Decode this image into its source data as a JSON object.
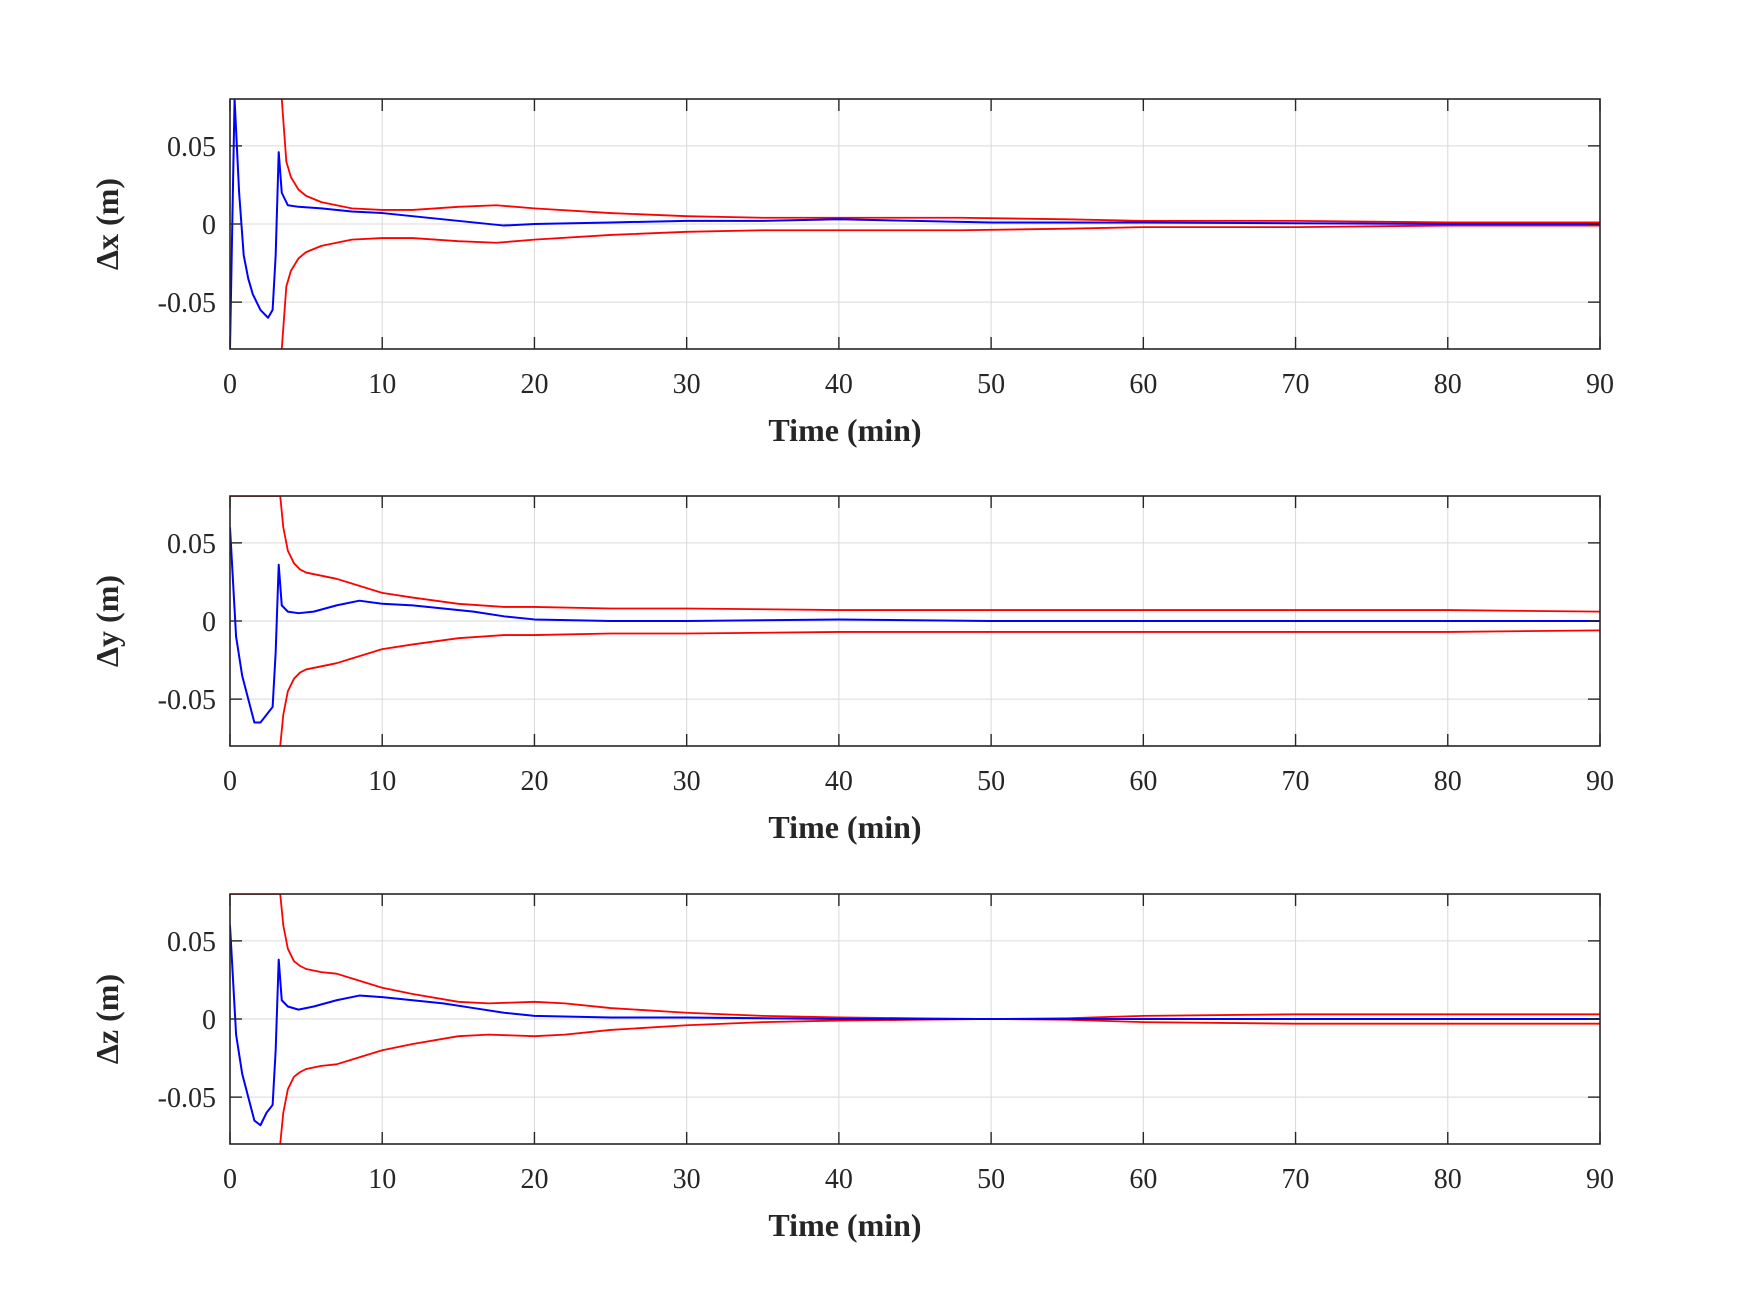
{
  "chart_data": [
    {
      "type": "line",
      "id": "dx",
      "title": "",
      "xlabel": "Time (min)",
      "ylabel": "Δx (m)",
      "xlim": [
        0,
        90
      ],
      "ylim": [
        -0.08,
        0.08
      ],
      "xticks": [
        0,
        10,
        20,
        30,
        40,
        50,
        60,
        70,
        80,
        90
      ],
      "yticks": [
        -0.05,
        0,
        0.05
      ],
      "ytick_labels": [
        "-0.05",
        "0",
        "0.05"
      ],
      "xtick_labels": [
        "0",
        "10",
        "20",
        "30",
        "40",
        "50",
        "60",
        "70",
        "80",
        "90"
      ],
      "grid": true,
      "colors": {
        "error": "#0000ff",
        "bound": "#ff0000"
      },
      "series": [
        {
          "role": "error",
          "color": "#0000ff",
          "x": [
            0,
            0.3,
            0.6,
            0.9,
            1.2,
            1.5,
            2.0,
            2.5,
            2.8,
            3.0,
            3.2,
            3.4,
            3.8,
            4.5,
            6,
            8,
            10,
            12,
            14,
            16,
            18,
            20,
            25,
            30,
            35,
            40,
            45,
            50,
            55,
            60,
            70,
            80,
            90
          ],
          "y": [
            -0.08,
            0.08,
            0.02,
            -0.02,
            -0.035,
            -0.045,
            -0.055,
            -0.06,
            -0.055,
            -0.02,
            0.046,
            0.02,
            0.012,
            0.011,
            0.01,
            0.008,
            0.007,
            0.005,
            0.003,
            0.001,
            -0.001,
            0.0,
            0.001,
            0.002,
            0.002,
            0.003,
            0.002,
            0.001,
            0.001,
            0.001,
            0.0005,
            0.0,
            0.0
          ]
        },
        {
          "role": "upper-bound",
          "color": "#ff0000",
          "x": [
            3.4,
            3.7,
            4.0,
            4.5,
            5,
            6,
            7,
            8,
            10,
            12,
            15,
            17.5,
            20,
            25,
            30,
            35,
            40,
            45,
            48,
            55,
            60,
            70,
            80,
            90
          ],
          "y": [
            0.08,
            0.04,
            0.03,
            0.022,
            0.018,
            0.014,
            0.012,
            0.01,
            0.009,
            0.009,
            0.011,
            0.012,
            0.01,
            0.007,
            0.005,
            0.004,
            0.004,
            0.004,
            0.004,
            0.003,
            0.002,
            0.002,
            0.001,
            0.001
          ]
        },
        {
          "role": "lower-bound",
          "color": "#ff0000",
          "x": [
            3.4,
            3.7,
            4.0,
            4.5,
            5,
            6,
            7,
            8,
            10,
            12,
            15,
            17.5,
            20,
            25,
            30,
            35,
            40,
            45,
            48,
            55,
            60,
            70,
            80,
            90
          ],
          "y": [
            -0.08,
            -0.04,
            -0.03,
            -0.022,
            -0.018,
            -0.014,
            -0.012,
            -0.01,
            -0.009,
            -0.009,
            -0.011,
            -0.012,
            -0.01,
            -0.007,
            -0.005,
            -0.004,
            -0.004,
            -0.004,
            -0.004,
            -0.003,
            -0.002,
            -0.002,
            -0.001,
            -0.001
          ]
        }
      ]
    },
    {
      "type": "line",
      "id": "dy",
      "title": "",
      "xlabel": "Time (min)",
      "ylabel": "Δy (m)",
      "xlim": [
        0,
        90
      ],
      "ylim": [
        -0.08,
        0.08
      ],
      "xticks": [
        0,
        10,
        20,
        30,
        40,
        50,
        60,
        70,
        80,
        90
      ],
      "yticks": [
        -0.05,
        0,
        0.05
      ],
      "ytick_labels": [
        "-0.05",
        "0",
        "0.05"
      ],
      "xtick_labels": [
        "0",
        "10",
        "20",
        "30",
        "40",
        "50",
        "60",
        "70",
        "80",
        "90"
      ],
      "grid": true,
      "colors": {
        "error": "#0000ff",
        "bound": "#ff0000"
      },
      "series": [
        {
          "role": "error",
          "color": "#0000ff",
          "x": [
            0,
            0.4,
            0.8,
            1.2,
            1.6,
            2.0,
            2.4,
            2.8,
            3.0,
            3.2,
            3.4,
            3.8,
            4.5,
            5.5,
            7,
            8.5,
            10,
            12,
            14,
            16,
            18,
            20,
            25,
            30,
            40,
            50,
            60,
            70,
            80,
            90
          ],
          "y": [
            0.06,
            -0.01,
            -0.035,
            -0.05,
            -0.065,
            -0.065,
            -0.06,
            -0.055,
            -0.02,
            0.036,
            0.01,
            0.006,
            0.005,
            0.006,
            0.01,
            0.013,
            0.011,
            0.01,
            0.008,
            0.006,
            0.003,
            0.001,
            0.0,
            0.0,
            0.001,
            0.0,
            0.0,
            0.0,
            0.0,
            0.0
          ]
        },
        {
          "role": "upper-bound",
          "color": "#ff0000",
          "x": [
            -0.05,
            0.1,
            0.3,
            0.5,
            3.3,
            3.5,
            3.8,
            4.2,
            4.6,
            5,
            6,
            7,
            8,
            10,
            12,
            15,
            18,
            20,
            25,
            30,
            40,
            50,
            60,
            70,
            80,
            90
          ],
          "y": [
            0.08,
            0.08,
            0.08,
            0.08,
            0.08,
            0.06,
            0.045,
            0.037,
            0.033,
            0.031,
            0.029,
            0.027,
            0.024,
            0.018,
            0.015,
            0.011,
            0.009,
            0.009,
            0.008,
            0.008,
            0.007,
            0.007,
            0.007,
            0.007,
            0.007,
            0.006
          ]
        },
        {
          "role": "lower-bound",
          "color": "#ff0000",
          "x": [
            3.3,
            3.5,
            3.8,
            4.2,
            4.6,
            5,
            6,
            7,
            8,
            10,
            12,
            15,
            18,
            20,
            25,
            30,
            40,
            50,
            60,
            70,
            80,
            90
          ],
          "y": [
            -0.08,
            -0.06,
            -0.045,
            -0.037,
            -0.033,
            -0.031,
            -0.029,
            -0.027,
            -0.024,
            -0.018,
            -0.015,
            -0.011,
            -0.009,
            -0.009,
            -0.008,
            -0.008,
            -0.007,
            -0.007,
            -0.007,
            -0.007,
            -0.007,
            -0.006
          ]
        }
      ]
    },
    {
      "type": "line",
      "id": "dz",
      "title": "",
      "xlabel": "Time (min)",
      "ylabel": "Δz (m)",
      "xlim": [
        0,
        90
      ],
      "ylim": [
        -0.08,
        0.08
      ],
      "xticks": [
        0,
        10,
        20,
        30,
        40,
        50,
        60,
        70,
        80,
        90
      ],
      "yticks": [
        -0.05,
        0,
        0.05
      ],
      "ytick_labels": [
        "-0.05",
        "0",
        "0.05"
      ],
      "xtick_labels": [
        "0",
        "10",
        "20",
        "30",
        "40",
        "50",
        "60",
        "70",
        "80",
        "90"
      ],
      "grid": true,
      "colors": {
        "error": "#0000ff",
        "bound": "#ff0000"
      },
      "series": [
        {
          "role": "error",
          "color": "#0000ff",
          "x": [
            0,
            0.4,
            0.8,
            1.2,
            1.6,
            2.0,
            2.4,
            2.8,
            3.0,
            3.2,
            3.4,
            3.8,
            4.5,
            5.5,
            7,
            8.5,
            10,
            12,
            14,
            16,
            18,
            20,
            25,
            30,
            40,
            50,
            60,
            70,
            80,
            90
          ],
          "y": [
            0.06,
            -0.01,
            -0.035,
            -0.05,
            -0.065,
            -0.068,
            -0.06,
            -0.055,
            -0.02,
            0.038,
            0.012,
            0.008,
            0.006,
            0.008,
            0.012,
            0.015,
            0.014,
            0.012,
            0.01,
            0.007,
            0.004,
            0.002,
            0.001,
            0.001,
            0.0,
            0.0,
            0.0,
            0.0,
            0.0,
            0.0
          ]
        },
        {
          "role": "upper-bound",
          "color": "#ff0000",
          "x": [
            -0.05,
            0.1,
            0.3,
            0.5,
            3.3,
            3.5,
            3.8,
            4.2,
            4.6,
            5,
            6,
            7,
            8,
            10,
            12,
            15,
            17,
            20,
            22,
            25,
            30,
            35,
            40,
            45,
            50,
            55,
            60,
            70,
            75,
            80,
            90
          ],
          "y": [
            0.08,
            0.08,
            0.08,
            0.08,
            0.08,
            0.06,
            0.045,
            0.037,
            0.034,
            0.032,
            0.03,
            0.029,
            0.026,
            0.02,
            0.016,
            0.011,
            0.01,
            0.011,
            0.01,
            0.007,
            0.004,
            0.002,
            0.001,
            0.0005,
            0.0,
            0.0005,
            0.002,
            0.003,
            0.003,
            0.003,
            0.003
          ]
        },
        {
          "role": "lower-bound",
          "color": "#ff0000",
          "x": [
            3.3,
            3.5,
            3.8,
            4.2,
            4.6,
            5,
            6,
            7,
            8,
            10,
            12,
            15,
            17,
            20,
            22,
            25,
            30,
            35,
            40,
            45,
            50,
            55,
            60,
            70,
            75,
            80,
            90
          ],
          "y": [
            -0.08,
            -0.06,
            -0.045,
            -0.037,
            -0.034,
            -0.032,
            -0.03,
            -0.029,
            -0.026,
            -0.02,
            -0.016,
            -0.011,
            -0.01,
            -0.011,
            -0.01,
            -0.007,
            -0.004,
            -0.002,
            -0.001,
            -0.0005,
            0.0,
            -0.0005,
            -0.002,
            -0.003,
            -0.003,
            -0.003,
            -0.003
          ]
        }
      ]
    }
  ]
}
